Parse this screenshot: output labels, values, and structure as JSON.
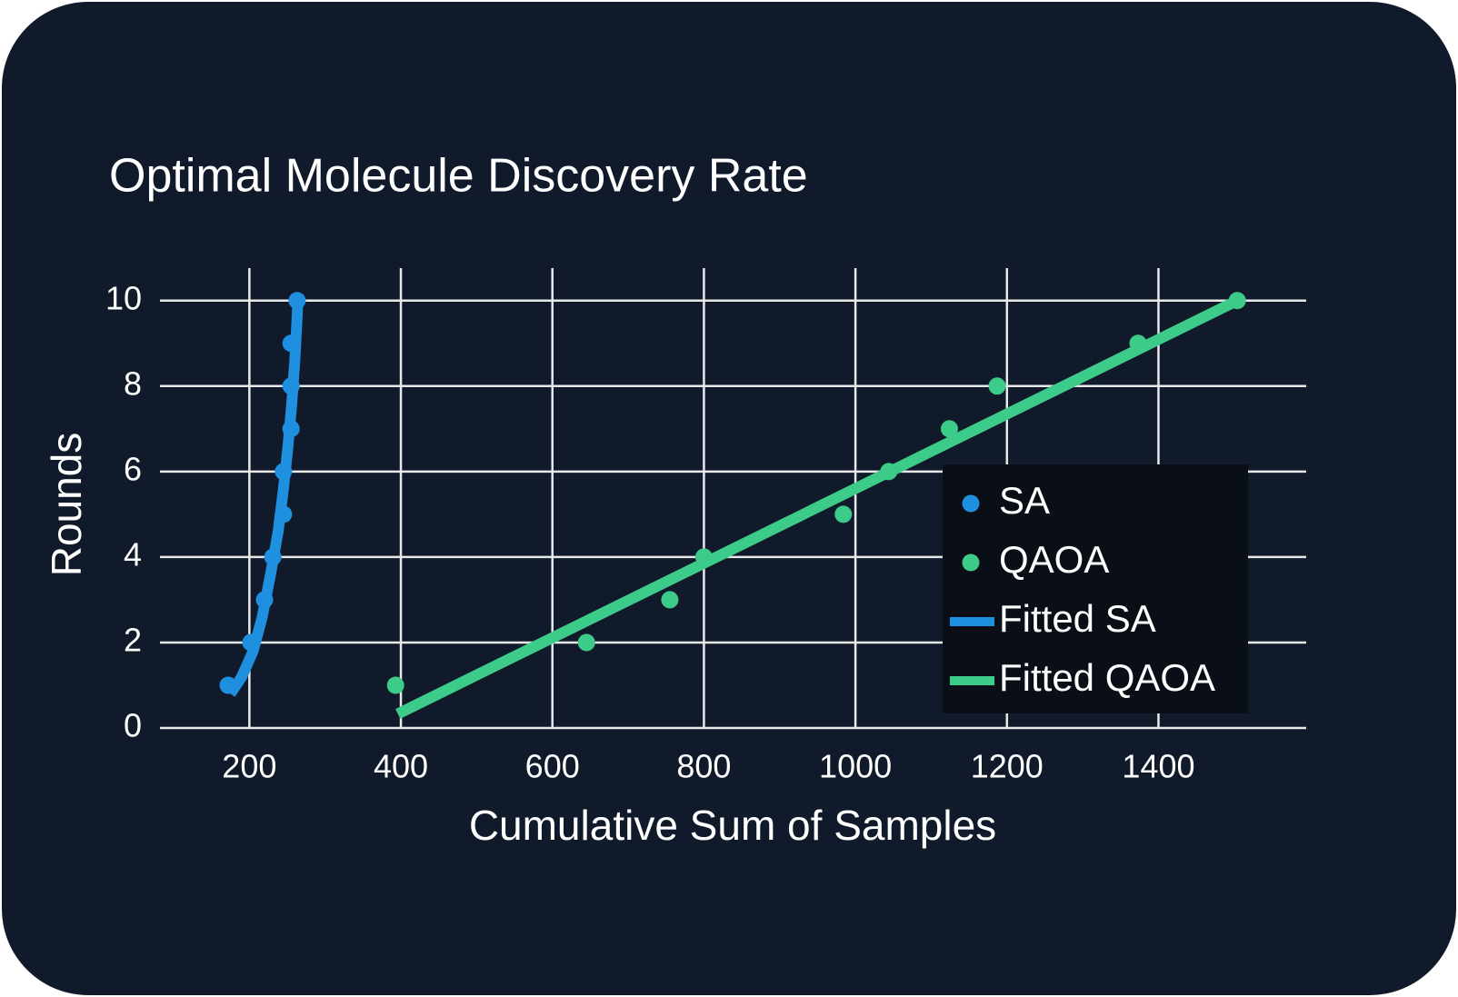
{
  "chart_data": {
    "type": "scatter",
    "title": "Optimal Molecule Discovery Rate",
    "x_label": "Cumulative Sum of Samples",
    "y_label": "Rounds",
    "xlim": [
      82,
      1595
    ],
    "ylim": [
      0,
      10.76
    ],
    "xticks": [
      200,
      400,
      600,
      800,
      1000,
      1200,
      1400
    ],
    "yticks": [
      0,
      2,
      4,
      6,
      8,
      10
    ],
    "grid": true,
    "legend": "right",
    "series": [
      {
        "name": "SA",
        "color": "#1f8fe0",
        "mode": "markers",
        "x": [
          172,
          202,
          220,
          231,
          245,
          245,
          255,
          255,
          255,
          263
        ],
        "values": [
          1,
          2,
          3,
          4,
          5,
          6,
          7,
          8,
          9,
          10
        ]
      },
      {
        "name": "QAOA",
        "color": "#3ccb88",
        "mode": "markers",
        "x": [
          393,
          645,
          755,
          800,
          984,
          1044,
          1124,
          1187,
          1373,
          1504
        ],
        "values": [
          1,
          2,
          3,
          4,
          5,
          6,
          7,
          8,
          9,
          10
        ]
      },
      {
        "name": "Fitted SA",
        "color": "#1f8fe0",
        "mode": "lines",
        "x": [
          175,
          190,
          205,
          217,
          228,
          238,
          245,
          251,
          256,
          260,
          263,
          264
        ],
        "values": [
          0.8,
          1.2,
          1.8,
          2.6,
          3.6,
          4.6,
          5.6,
          6.6,
          7.6,
          8.6,
          9.6,
          10
        ]
      },
      {
        "name": "Fitted QAOA",
        "color": "#3ccb88",
        "mode": "lines",
        "x": [
          396,
          1504
        ],
        "values": [
          0.33,
          10
        ]
      }
    ]
  }
}
